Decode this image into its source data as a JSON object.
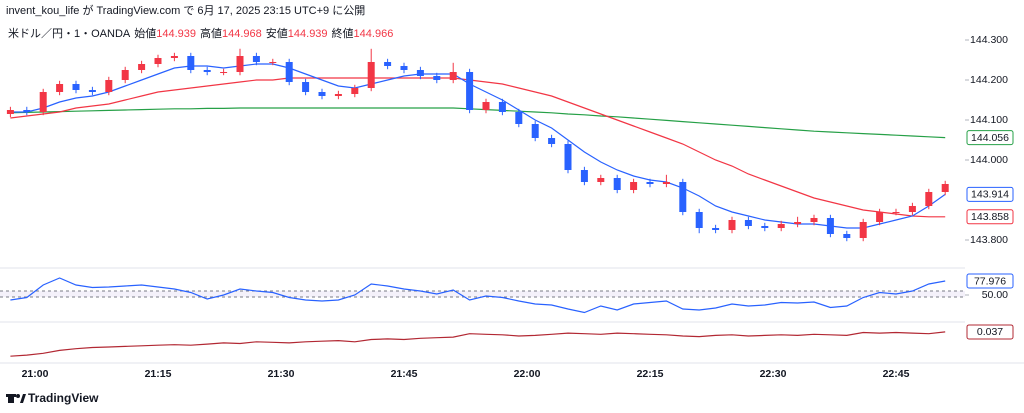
{
  "header": {
    "title": "invent_kou_life が TradingView.com で 6月 17, 2025 23:15 UTC+9 に公開"
  },
  "footer": {
    "brand": "TradingView"
  },
  "chart_data": [
    {
      "type": "candlestick",
      "symbol": "米ドル／円・1・OANDA",
      "quote": [
        {
          "name": "始値",
          "value": 144.939
        },
        {
          "name": "高値",
          "value": 144.968
        },
        {
          "name": "安値",
          "value": 144.939
        },
        {
          "name": "終値",
          "value": 144.966
        }
      ],
      "up_color": "#f23645",
      "down_color": "#2962ff",
      "x": [
        "20:57",
        "20:59",
        "21:01",
        "21:03",
        "21:05",
        "21:07",
        "21:09",
        "21:11",
        "21:13",
        "21:15",
        "21:17",
        "21:19",
        "21:21",
        "21:23",
        "21:25",
        "21:27",
        "21:29",
        "21:31",
        "21:33",
        "21:35",
        "21:37",
        "21:39",
        "21:41",
        "21:43",
        "21:45",
        "21:47",
        "21:49",
        "21:51",
        "21:53",
        "21:55",
        "21:57",
        "21:59",
        "22:01",
        "22:03",
        "22:05",
        "22:07",
        "22:09",
        "22:11",
        "22:13",
        "22:15",
        "22:17",
        "22:19",
        "22:21",
        "22:23",
        "22:25",
        "22:27",
        "22:29",
        "22:31",
        "22:33",
        "22:35",
        "22:37",
        "22:39",
        "22:41",
        "22:43",
        "22:45",
        "22:47",
        "22:49",
        "22:51"
      ],
      "open": [
        144.115,
        144.125,
        144.12,
        144.17,
        144.19,
        144.175,
        144.17,
        144.2,
        144.225,
        144.24,
        144.255,
        144.26,
        144.225,
        144.22,
        144.22,
        144.26,
        144.245,
        144.245,
        144.195,
        144.17,
        144.16,
        144.165,
        144.18,
        144.245,
        144.235,
        144.225,
        144.21,
        144.2,
        144.22,
        144.125,
        144.145,
        144.12,
        144.09,
        144.055,
        144.04,
        143.975,
        143.945,
        143.955,
        143.925,
        143.945,
        143.94,
        143.945,
        143.87,
        143.83,
        143.825,
        143.85,
        143.835,
        143.83,
        143.84,
        143.845,
        143.855,
        143.815,
        143.805,
        143.845,
        143.87,
        143.87,
        143.885,
        143.92
      ],
      "high": [
        144.133,
        144.133,
        144.178,
        144.198,
        144.198,
        144.183,
        144.208,
        144.233,
        144.248,
        144.263,
        144.268,
        144.268,
        144.233,
        144.228,
        144.278,
        144.268,
        144.253,
        144.253,
        144.203,
        144.178,
        144.173,
        144.188,
        144.278,
        144.253,
        144.243,
        144.233,
        144.218,
        144.243,
        144.228,
        144.153,
        144.153,
        144.128,
        144.098,
        144.063,
        144.048,
        143.983,
        143.963,
        143.963,
        143.953,
        143.953,
        143.963,
        143.953,
        143.878,
        143.838,
        143.858,
        143.858,
        143.843,
        143.848,
        143.858,
        143.863,
        143.863,
        143.823,
        143.853,
        143.878,
        143.878,
        143.893,
        143.928,
        143.948
      ],
      "low": [
        144.107,
        144.112,
        144.112,
        144.162,
        144.167,
        144.162,
        144.162,
        144.192,
        144.217,
        144.232,
        144.247,
        144.217,
        144.212,
        144.212,
        144.212,
        144.237,
        144.237,
        144.187,
        144.162,
        144.152,
        144.152,
        144.157,
        144.172,
        144.227,
        144.217,
        144.202,
        144.192,
        144.192,
        144.117,
        144.117,
        144.112,
        144.082,
        144.047,
        144.032,
        143.967,
        143.937,
        143.937,
        143.917,
        143.917,
        143.932,
        143.932,
        143.862,
        143.817,
        143.817,
        143.817,
        143.827,
        143.822,
        143.822,
        143.832,
        143.837,
        143.807,
        143.797,
        143.797,
        143.837,
        143.862,
        143.862,
        143.877,
        143.912
      ],
      "close": [
        144.125,
        144.12,
        144.17,
        144.19,
        144.175,
        144.17,
        144.2,
        144.225,
        144.24,
        144.255,
        144.26,
        144.225,
        144.22,
        144.22,
        144.26,
        144.245,
        144.245,
        144.195,
        144.17,
        144.16,
        144.165,
        144.18,
        144.245,
        144.235,
        144.225,
        144.21,
        144.2,
        144.22,
        144.125,
        144.145,
        144.12,
        144.09,
        144.055,
        144.04,
        143.975,
        143.945,
        143.955,
        143.925,
        143.945,
        143.94,
        143.945,
        143.87,
        143.83,
        143.825,
        143.85,
        143.835,
        143.83,
        143.84,
        143.845,
        143.855,
        143.815,
        143.805,
        143.845,
        143.87,
        143.87,
        143.885,
        143.92,
        143.94
      ],
      "series": [
        {
          "color": "#26a047",
          "values": [
            144.118,
            144.119,
            144.12,
            144.121,
            144.122,
            144.123,
            144.124,
            144.125,
            144.126,
            144.127,
            144.128,
            144.128,
            144.129,
            144.129,
            144.13,
            144.13,
            144.13,
            144.13,
            144.13,
            144.13,
            144.13,
            144.13,
            144.13,
            144.13,
            144.13,
            144.13,
            144.13,
            144.13,
            144.128,
            144.126,
            144.124,
            144.122,
            144.12,
            144.118,
            144.115,
            144.113,
            144.11,
            144.108,
            144.105,
            144.102,
            144.099,
            144.096,
            144.093,
            144.09,
            144.087,
            144.084,
            144.081,
            144.078,
            144.075,
            144.072,
            144.07,
            144.068,
            144.066,
            144.064,
            144.062,
            144.06,
            144.058,
            144.056
          ]
        },
        {
          "color": "#f23645",
          "values": [
            144.105,
            144.11,
            144.115,
            144.12,
            144.13,
            144.135,
            144.14,
            144.15,
            144.16,
            144.17,
            144.175,
            144.18,
            144.185,
            144.19,
            144.195,
            144.2,
            144.2,
            144.205,
            144.205,
            144.205,
            144.205,
            144.205,
            144.205,
            144.205,
            144.205,
            144.205,
            144.205,
            144.205,
            144.2,
            144.195,
            144.19,
            144.18,
            144.17,
            144.16,
            144.145,
            144.13,
            144.115,
            144.1,
            144.085,
            144.07,
            144.055,
            144.04,
            144.02,
            144.0,
            143.985,
            143.965,
            143.95,
            143.935,
            143.92,
            143.905,
            143.895,
            143.885,
            143.875,
            143.87,
            143.865,
            143.86,
            143.858,
            143.858
          ]
        },
        {
          "color": "#2962ff",
          "values": [
            144.12,
            144.12,
            144.13,
            144.145,
            144.155,
            144.16,
            144.17,
            144.185,
            144.2,
            144.215,
            144.23,
            144.235,
            144.235,
            144.23,
            144.235,
            144.24,
            144.24,
            144.23,
            144.215,
            144.2,
            144.185,
            144.18,
            144.19,
            144.2,
            144.21,
            144.215,
            144.215,
            144.215,
            144.19,
            144.17,
            144.15,
            144.125,
            144.1,
            144.08,
            144.05,
            144.02,
            143.995,
            143.975,
            143.96,
            143.95,
            143.945,
            143.93,
            143.91,
            143.885,
            143.87,
            143.86,
            143.85,
            143.845,
            143.84,
            143.84,
            143.835,
            143.83,
            143.83,
            143.84,
            143.85,
            143.86,
            143.885,
            143.914
          ]
        }
      ],
      "ylim": [
        143.7375,
        144.35
      ],
      "yticks": [
        {
          "value": 143.8,
          "label": "143.800"
        },
        {
          "value": 144.0,
          "label": "144.000"
        },
        {
          "value": 144.1,
          "label": "144.100"
        },
        {
          "value": 144.2,
          "label": "144.200"
        },
        {
          "value": 144.3,
          "label": "144.300"
        }
      ],
      "xticks": [
        "21:00",
        "21:15",
        "21:30",
        "21:45",
        "22:00",
        "22:15",
        "22:30",
        "22:45"
      ]
    },
    {
      "type": "line",
      "series": [
        {
          "color": "#2962ff",
          "values": [
            40,
            45,
            70,
            84,
            70,
            65,
            66,
            68,
            70,
            66,
            62,
            55,
            42,
            50,
            62,
            58,
            55,
            45,
            40,
            38,
            40,
            50,
            72,
            68,
            62,
            58,
            52,
            60,
            40,
            48,
            45,
            38,
            32,
            30,
            22,
            15,
            28,
            20,
            32,
            35,
            38,
            22,
            20,
            24,
            32,
            28,
            30,
            35,
            34,
            36,
            25,
            28,
            45,
            55,
            52,
            58,
            72,
            77.976
          ]
        }
      ],
      "ylim": [
        0,
        100
      ],
      "yticks": [
        {
          "value": 50,
          "label": "50.00"
        }
      ]
    },
    {
      "type": "line",
      "series": [
        {
          "color": "#b22833",
          "values": [
            -0.005,
            -0.003,
            0.0,
            0.005,
            0.008,
            0.01,
            0.011,
            0.012,
            0.013,
            0.014,
            0.015,
            0.014,
            0.016,
            0.018,
            0.017,
            0.02,
            0.019,
            0.018,
            0.02,
            0.021,
            0.022,
            0.02,
            0.024,
            0.025,
            0.024,
            0.026,
            0.027,
            0.028,
            0.034,
            0.033,
            0.032,
            0.03,
            0.031,
            0.033,
            0.035,
            0.034,
            0.033,
            0.035,
            0.034,
            0.033,
            0.032,
            0.03,
            0.029,
            0.031,
            0.032,
            0.03,
            0.031,
            0.032,
            0.031,
            0.033,
            0.032,
            0.031,
            0.036,
            0.035,
            0.036,
            0.035,
            0.034,
            0.037
          ]
        }
      ],
      "ylim": [
        -0.015,
        0.049
      ]
    }
  ]
}
